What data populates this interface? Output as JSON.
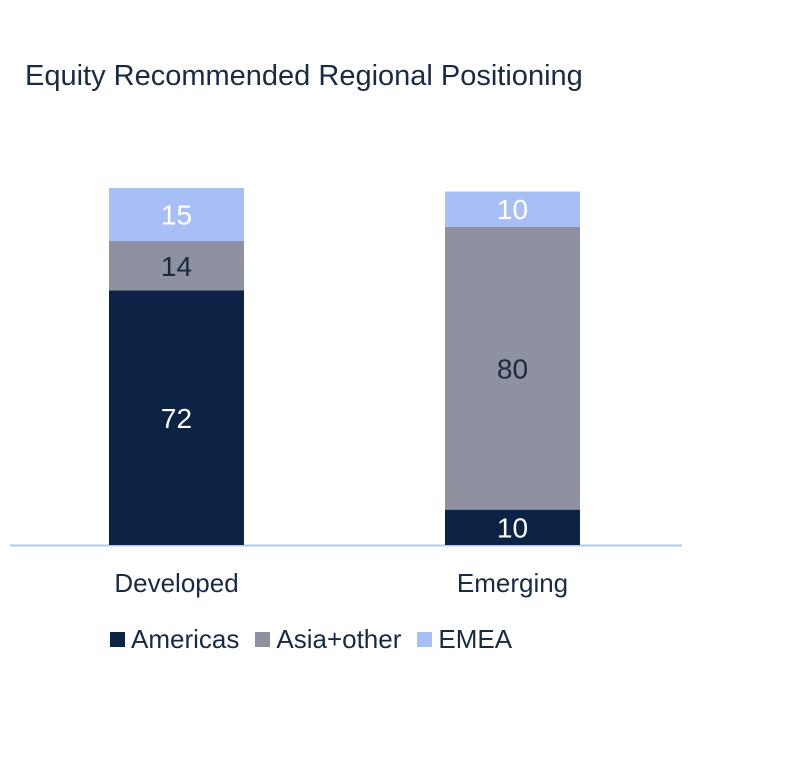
{
  "chart_data": {
    "type": "bar",
    "stacked": true,
    "title": "Equity Recommended Regional Positioning",
    "categories": [
      "Developed",
      "Emerging"
    ],
    "series": [
      {
        "name": "Americas",
        "values": [
          72,
          10
        ],
        "color": "#0d2346"
      },
      {
        "name": "Asia+other",
        "values": [
          14,
          80
        ],
        "color": "#8e919f"
      },
      {
        "name": "EMEA",
        "values": [
          15,
          10
        ],
        "color": "#a8bff5"
      }
    ],
    "data_labels": [
      [
        "72",
        "10"
      ],
      [
        "14",
        "80"
      ],
      [
        "15",
        "10"
      ]
    ],
    "xlabel": "",
    "ylabel": "",
    "grid": false,
    "legend_position": "bottom",
    "colors": {
      "baseline": "#aecbea",
      "text": "#1a2a44",
      "label_light": "#ffffff",
      "label_dark": "#1a2a44"
    }
  }
}
